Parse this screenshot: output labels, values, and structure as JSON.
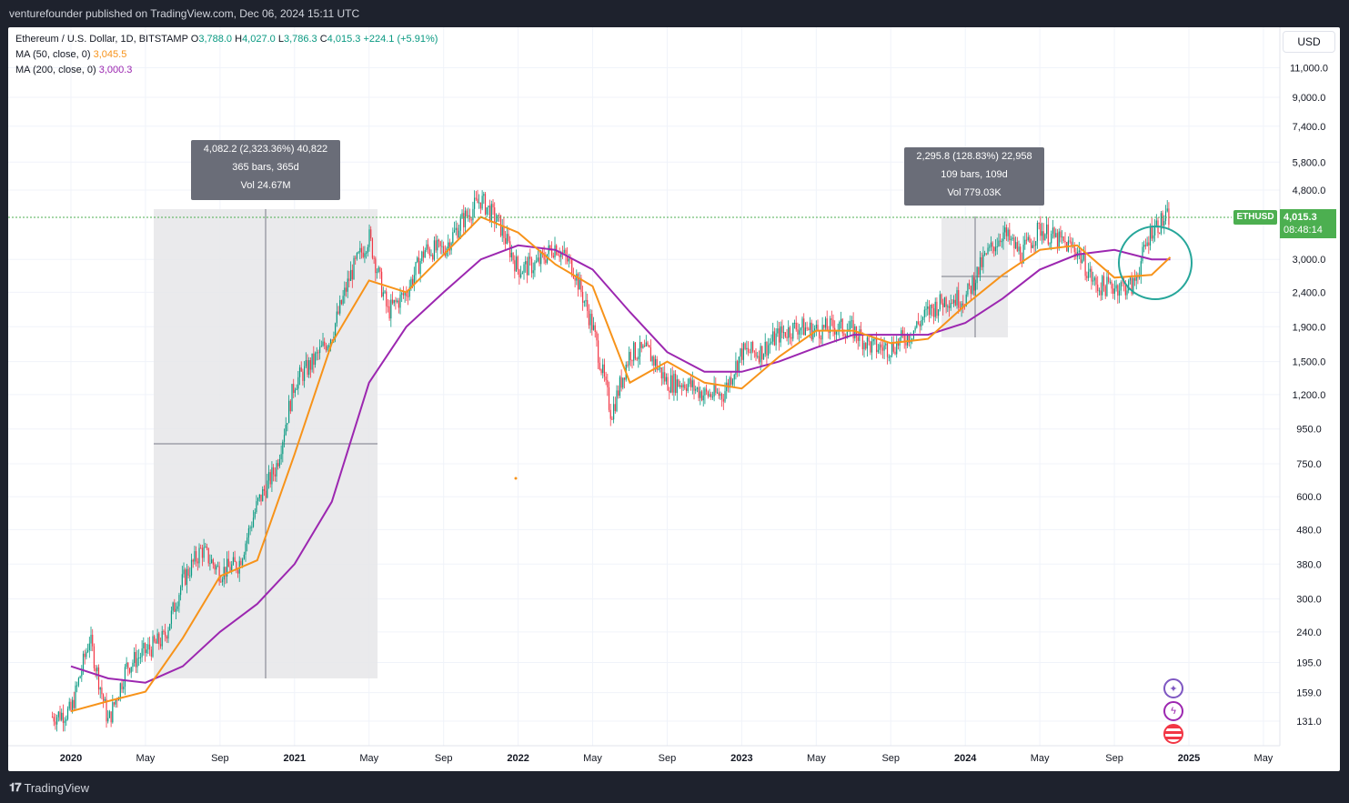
{
  "publisher_line": "venturefounder published on TradingView.com, Dec 06, 2024 15:11 UTC",
  "legend": {
    "symbol": "Ethereum / U.S. Dollar, 1D, BITSTAMP",
    "o_label": "O",
    "o": "3,788.0",
    "h_label": "H",
    "h": "4,027.0",
    "l_label": "L",
    "l": "3,786.3",
    "c_label": "C",
    "c": "4,015.3",
    "change": "+224.1 (+5.91%)",
    "ma50_label": "MA (50, close, 0)",
    "ma50": "3,045.5",
    "ma200_label": "MA (200, close, 0)",
    "ma200": "3,000.3"
  },
  "currency_button": "USD",
  "measure1": {
    "line1": "4,082.2 (2,323.36%) 40,822",
    "line2": "365 bars, 365d",
    "line3": "Vol 24.67M"
  },
  "measure2": {
    "line1": "2,295.8 (128.83%) 22,958",
    "line2": "109 bars, 109d",
    "line3": "Vol 779.03K"
  },
  "price_axis": [
    "11,000.0",
    "9,000.0",
    "7,400.0",
    "5,800.0",
    "4,800.0",
    "3,000.0",
    "2,400.0",
    "1,900.0",
    "1,500.0",
    "1,200.0",
    "950.0",
    "750.0",
    "600.0",
    "480.0",
    "380.0",
    "300.0",
    "240.0",
    "195.0",
    "159.0",
    "131.0"
  ],
  "time_axis": [
    "2020",
    "May",
    "Sep",
    "2021",
    "May",
    "Sep",
    "2022",
    "May",
    "Sep",
    "2023",
    "May",
    "Sep",
    "2024",
    "May",
    "Sep",
    "2025",
    "May"
  ],
  "symbol_tag": "ETHUSD",
  "last_price": "4,015.3",
  "countdown": "08:48:14",
  "footer_brand": "TradingView",
  "colors": {
    "up": "#089981",
    "down": "#f23645",
    "ma50": "#f7931a",
    "ma200": "#9c27b0",
    "price_tag": "#4caf50",
    "circle": "#26a69a"
  },
  "chart_data": {
    "type": "line",
    "scale": "log",
    "series": [
      {
        "name": "ETHUSD",
        "x": [
          "2019-12",
          "2020-01",
          "2020-02",
          "2020-03",
          "2020-04",
          "2020-05",
          "2020-06",
          "2020-07",
          "2020-08",
          "2020-09",
          "2020-10",
          "2020-11",
          "2020-12",
          "2021-01",
          "2021-02",
          "2021-03",
          "2021-04",
          "2021-05",
          "2021-06",
          "2021-07",
          "2021-08",
          "2021-09",
          "2021-10",
          "2021-11",
          "2021-12",
          "2022-01",
          "2022-02",
          "2022-03",
          "2022-04",
          "2022-05",
          "2022-06",
          "2022-07",
          "2022-08",
          "2022-09",
          "2022-10",
          "2022-11",
          "2022-12",
          "2023-01",
          "2023-02",
          "2023-03",
          "2023-04",
          "2023-05",
          "2023-06",
          "2023-07",
          "2023-08",
          "2023-09",
          "2023-10",
          "2023-11",
          "2023-12",
          "2024-01",
          "2024-02",
          "2024-03",
          "2024-04",
          "2024-05",
          "2024-06",
          "2024-07",
          "2024-08",
          "2024-09",
          "2024-10",
          "2024-11",
          "2024-12"
        ],
        "values": [
          135,
          140,
          230,
          130,
          190,
          210,
          230,
          340,
          420,
          360,
          380,
          570,
          730,
          1300,
          1500,
          1800,
          2700,
          3500,
          2100,
          2400,
          3200,
          3200,
          3900,
          4500,
          3800,
          2800,
          2900,
          3300,
          2800,
          1900,
          1050,
          1600,
          1600,
          1300,
          1300,
          1200,
          1200,
          1600,
          1600,
          1800,
          1900,
          1850,
          1900,
          1850,
          1650,
          1650,
          1800,
          2100,
          2300,
          2300,
          3000,
          3600,
          3100,
          3700,
          3400,
          3200,
          2500,
          2500,
          2500,
          3700,
          4015
        ]
      },
      {
        "name": "MA (50, close, 0)",
        "x": [
          "2020-01",
          "2020-03",
          "2020-05",
          "2020-07",
          "2020-09",
          "2020-11",
          "2021-01",
          "2021-03",
          "2021-05",
          "2021-07",
          "2021-09",
          "2021-11",
          "2022-01",
          "2022-03",
          "2022-05",
          "2022-07",
          "2022-09",
          "2022-11",
          "2023-01",
          "2023-03",
          "2023-05",
          "2023-07",
          "2023-09",
          "2023-11",
          "2024-01",
          "2024-03",
          "2024-05",
          "2024-07",
          "2024-09",
          "2024-11",
          "2024-12"
        ],
        "values": [
          140,
          150,
          160,
          230,
          350,
          390,
          800,
          1700,
          2600,
          2400,
          3100,
          4000,
          3600,
          2900,
          2500,
          1300,
          1500,
          1300,
          1250,
          1550,
          1850,
          1850,
          1700,
          1750,
          2200,
          2700,
          3200,
          3300,
          2650,
          2700,
          3045.5
        ]
      },
      {
        "name": "MA (200, close, 0)",
        "x": [
          "2020-01",
          "2020-03",
          "2020-05",
          "2020-07",
          "2020-09",
          "2020-11",
          "2021-01",
          "2021-03",
          "2021-05",
          "2021-07",
          "2021-09",
          "2021-11",
          "2022-01",
          "2022-03",
          "2022-05",
          "2022-07",
          "2022-09",
          "2022-11",
          "2023-01",
          "2023-03",
          "2023-05",
          "2023-07",
          "2023-09",
          "2023-11",
          "2024-01",
          "2024-03",
          "2024-05",
          "2024-07",
          "2024-09",
          "2024-11",
          "2024-12"
        ],
        "values": [
          190,
          175,
          170,
          190,
          240,
          290,
          380,
          580,
          1300,
          1900,
          2400,
          3000,
          3300,
          3200,
          2800,
          2100,
          1600,
          1400,
          1400,
          1500,
          1650,
          1800,
          1800,
          1800,
          1950,
          2300,
          2800,
          3100,
          3200,
          3000,
          3000.3
        ]
      }
    ]
  }
}
